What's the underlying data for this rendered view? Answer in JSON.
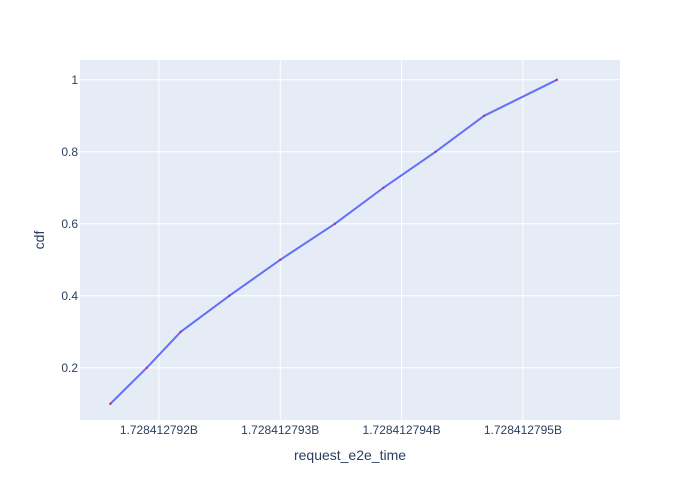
{
  "chart_data": {
    "type": "line",
    "title": "",
    "xlabel": "request_e2e_time",
    "ylabel": "cdf",
    "grid": true,
    "legend": "none",
    "xlim": [
      1728412791.35,
      1728412795.8
    ],
    "ylim": [
      0.055,
      1.055
    ],
    "x_ticks": [
      {
        "value": 1728412792,
        "label": "1.728412792B"
      },
      {
        "value": 1728412793,
        "label": "1.728412793B"
      },
      {
        "value": 1728412794,
        "label": "1.728412794B"
      },
      {
        "value": 1728412795,
        "label": "1.728412795B"
      }
    ],
    "y_ticks": [
      {
        "value": 0.2,
        "label": "0.2"
      },
      {
        "value": 0.4,
        "label": "0.4"
      },
      {
        "value": 0.6,
        "label": "0.6"
      },
      {
        "value": 0.8,
        "label": "0.8"
      },
      {
        "value": 1.0,
        "label": "1"
      }
    ],
    "series": [
      {
        "line_color": "#636EFA",
        "marker_color": "#C0306A",
        "x": [
          1728412791.6,
          1728412791.9,
          1728412792.18,
          1728412792.58,
          1728412793.0,
          1728412793.45,
          1728412793.85,
          1728412794.28,
          1728412794.68,
          1728412795.28
        ],
        "y": [
          0.1,
          0.2,
          0.3,
          0.4,
          0.5,
          0.6,
          0.7,
          0.8,
          0.9,
          1.0
        ]
      }
    ]
  }
}
